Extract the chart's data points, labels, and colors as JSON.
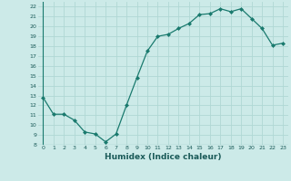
{
  "x": [
    0,
    1,
    2,
    3,
    4,
    5,
    6,
    7,
    8,
    9,
    10,
    11,
    12,
    13,
    14,
    15,
    16,
    17,
    18,
    19,
    20,
    21,
    22,
    23
  ],
  "y": [
    12.8,
    11.1,
    11.1,
    10.5,
    9.3,
    9.1,
    8.3,
    9.1,
    12.0,
    14.8,
    17.5,
    19.0,
    19.2,
    19.8,
    20.3,
    21.2,
    21.3,
    21.8,
    21.5,
    21.8,
    20.8,
    19.8,
    18.1,
    18.3
  ],
  "xlabel": "Humidex (Indice chaleur)",
  "ylim": [
    8,
    22.5
  ],
  "xlim": [
    -0.5,
    23.5
  ],
  "yticks": [
    8,
    9,
    10,
    11,
    12,
    13,
    14,
    15,
    16,
    17,
    18,
    19,
    20,
    21,
    22
  ],
  "xticks": [
    0,
    1,
    2,
    3,
    4,
    5,
    6,
    7,
    8,
    9,
    10,
    11,
    12,
    13,
    14,
    15,
    16,
    17,
    18,
    19,
    20,
    21,
    22,
    23
  ],
  "line_color": "#1a7a6e",
  "marker_color": "#1a7a6e",
  "bg_color": "#cceae8",
  "grid_color": "#b0d8d4",
  "axis_color": "#1a7a6e"
}
